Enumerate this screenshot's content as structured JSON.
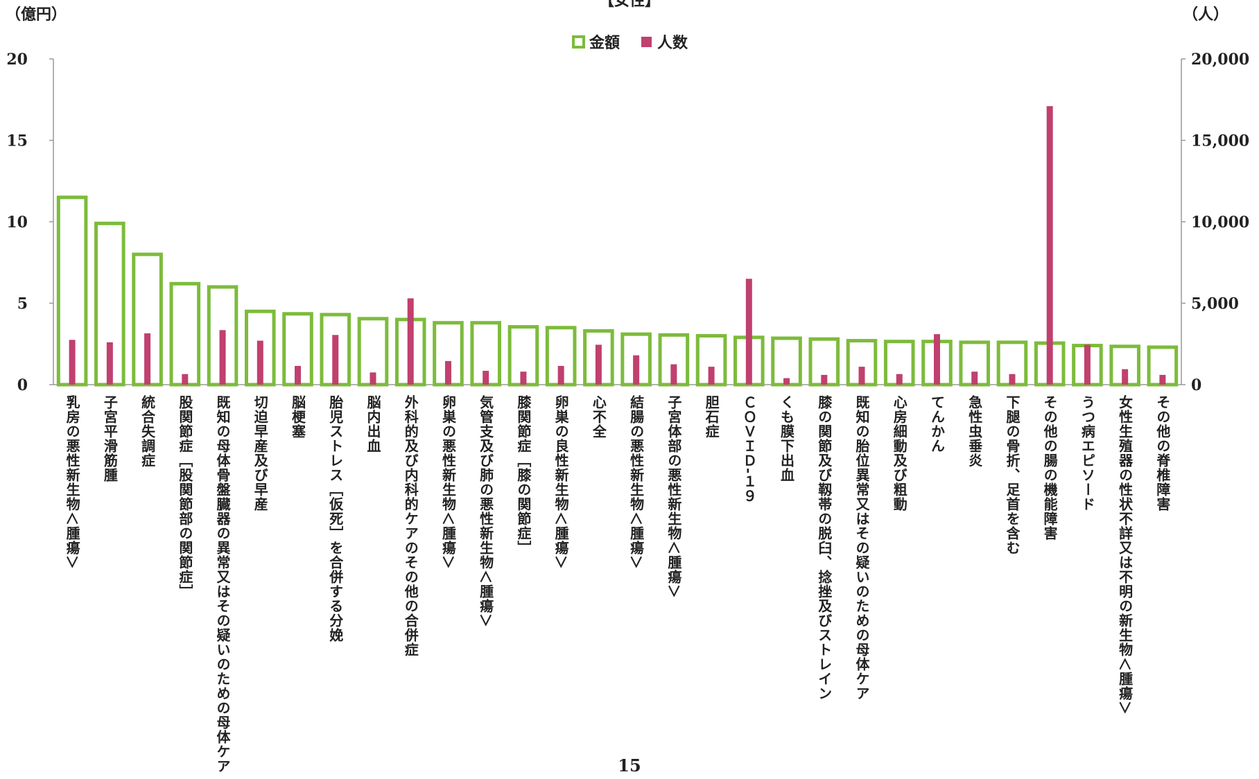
{
  "page_number": "15",
  "chart_data": {
    "type": "bar",
    "title": "【女性】",
    "left_axis_unit": "（億円）",
    "right_axis_unit": "（人）",
    "left_ticks": [
      "0",
      "5",
      "10",
      "15",
      "20"
    ],
    "right_ticks": [
      "0",
      "5,000",
      "10,000",
      "15,000",
      "20,000"
    ],
    "ylim_left": [
      0,
      20
    ],
    "ylim_right": [
      0,
      20000
    ],
    "grid": false,
    "legend_position": "top-center",
    "categories": [
      "乳房の悪性新生物＜腫瘍＞",
      "子宮平滑筋腫",
      "統合失調症",
      "股関節症［股関節部の関節症］",
      "既知の母体骨盤臓器の異常又はその疑いのための母体ケア",
      "切迫早産及び早産",
      "脳梗塞",
      "胎児ストレス［仮死］を合併する分娩",
      "脳内出血",
      "外科的及び内科的ケアのその他の合併症",
      "卵巣の悪性新生物＜腫瘍＞",
      "気管支及び肺の悪性新生物＜腫瘍＞",
      "膝関節症［膝の関節症］",
      "卵巣の良性新生物＜腫瘍＞",
      "心不全",
      "結腸の悪性新生物＜腫瘍＞",
      "子宮体部の悪性新生物＜腫瘍＞",
      "胆石症",
      "ＣＯＶＩＤ-１９",
      "くも膜下出血",
      "膝の関節及び靱帯の脱臼、捻挫及びストレイン",
      "既知の胎位異常又はその疑いのための母体ケア",
      "心房細動及び粗動",
      "てんかん",
      "急性虫垂炎",
      "下腿の骨折、足首を含む",
      "その他の腸の機能障害",
      "うつ病エピソード",
      "女性生殖器の性状不詳又は不明の新生物＜腫瘍＞",
      "その他の脊椎障害"
    ],
    "series": [
      {
        "name": "金額",
        "axis": "left",
        "color": "#7dbb3c",
        "values": [
          11.5,
          9.9,
          8.0,
          6.2,
          6.0,
          4.5,
          4.35,
          4.3,
          4.05,
          4.0,
          3.8,
          3.8,
          3.55,
          3.5,
          3.3,
          3.1,
          3.05,
          3.0,
          2.9,
          2.85,
          2.8,
          2.7,
          2.65,
          2.65,
          2.6,
          2.6,
          2.55,
          2.4,
          2.35,
          2.3
        ]
      },
      {
        "name": "人数",
        "axis": "right",
        "color": "#c0406e",
        "values": [
          2750,
          2600,
          3150,
          650,
          3350,
          2700,
          1150,
          3050,
          750,
          5300,
          1450,
          850,
          800,
          1150,
          2450,
          1800,
          1250,
          1100,
          6500,
          400,
          600,
          1100,
          650,
          3100,
          800,
          650,
          17100,
          2450,
          950,
          600
        ]
      }
    ]
  }
}
